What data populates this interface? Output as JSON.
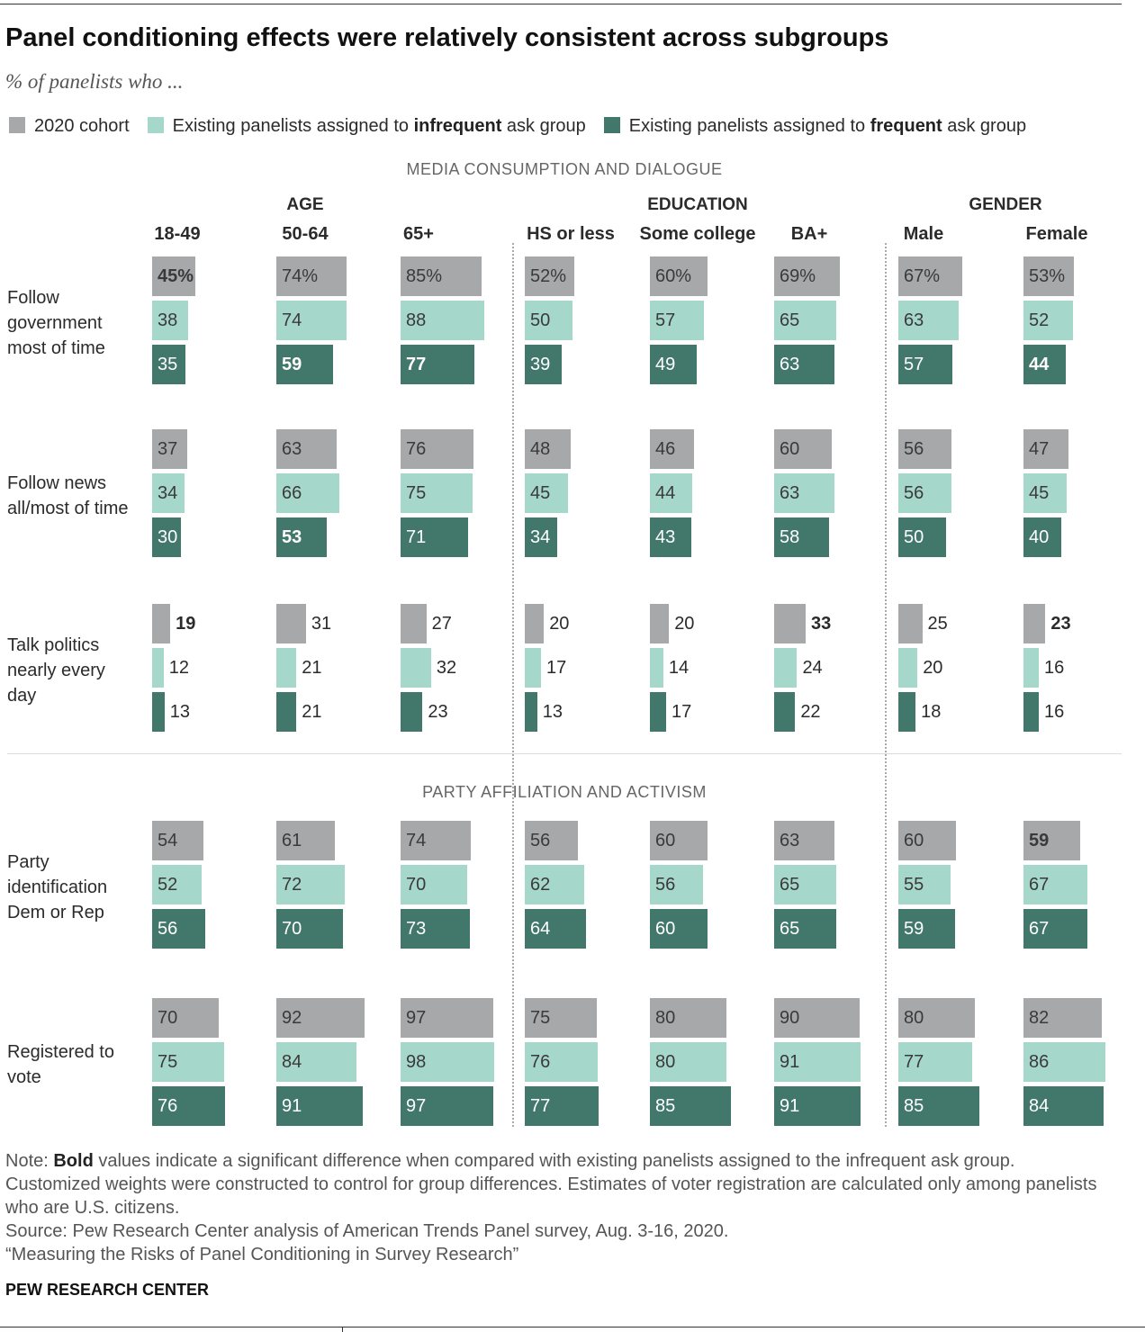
{
  "chart_data": {
    "type": "grouped-bar-grid",
    "title": "Panel conditioning effects were relatively consistent across subgroups",
    "subtitle": "% of panelists who ...",
    "series": [
      {
        "name_parts": [
          {
            "text": "2020 cohort"
          }
        ],
        "color": "#a7a8aa",
        "text_color": "#3a3a3a"
      },
      {
        "name_parts": [
          {
            "text": "Existing panelists assigned to "
          },
          {
            "text": "infrequent",
            "bold": true
          },
          {
            "text": " ask group"
          }
        ],
        "color": "#a6d7cb",
        "text_color": "#3a3a3a"
      },
      {
        "name_parts": [
          {
            "text": "Existing panelists assigned to "
          },
          {
            "text": "frequent",
            "bold": true
          },
          {
            "text": " ask group"
          }
        ],
        "color": "#42786b",
        "text_color": "#ffffff"
      }
    ],
    "groups": [
      {
        "name": "AGE",
        "subgroups": [
          "18-49",
          "50-64",
          "65+"
        ]
      },
      {
        "name": "EDUCATION",
        "subgroups": [
          "HS or less",
          "Some college",
          "BA+"
        ]
      },
      {
        "name": "GENDER",
        "subgroups": [
          "Male",
          "Female"
        ]
      }
    ],
    "sections": [
      {
        "title": "MEDIA CONSUMPTION AND DIALOGUE",
        "rows": [
          {
            "label": "Follow government most of time",
            "values": [
              [
                45,
                38,
                35
              ],
              [
                74,
                74,
                59
              ],
              [
                85,
                88,
                77
              ],
              [
                52,
                50,
                39
              ],
              [
                60,
                57,
                49
              ],
              [
                69,
                65,
                63
              ],
              [
                67,
                63,
                57
              ],
              [
                53,
                52,
                44
              ]
            ],
            "value_labels": [
              [
                "45%",
                null,
                null
              ],
              [
                "74%",
                null,
                null
              ],
              [
                "85%",
                null,
                null
              ],
              [
                "52%",
                null,
                null
              ],
              [
                "60%",
                null,
                null
              ],
              [
                "69%",
                null,
                null
              ],
              [
                "67%",
                null,
                null
              ],
              [
                "53%",
                null,
                null
              ]
            ],
            "bold": [
              [
                true,
                false,
                false
              ],
              [
                false,
                false,
                true
              ],
              [
                false,
                false,
                true
              ],
              [
                false,
                false,
                false
              ],
              [
                false,
                false,
                false
              ],
              [
                false,
                false,
                false
              ],
              [
                false,
                false,
                false
              ],
              [
                false,
                false,
                true
              ]
            ]
          },
          {
            "label": "Follow news all/most of time",
            "values": [
              [
                37,
                34,
                30
              ],
              [
                63,
                66,
                53
              ],
              [
                76,
                75,
                71
              ],
              [
                48,
                45,
                34
              ],
              [
                46,
                44,
                43
              ],
              [
                60,
                63,
                58
              ],
              [
                56,
                56,
                50
              ],
              [
                47,
                45,
                40
              ]
            ],
            "bold": [
              [
                false,
                false,
                false
              ],
              [
                false,
                false,
                true
              ],
              [
                false,
                false,
                false
              ],
              [
                false,
                false,
                false
              ],
              [
                false,
                false,
                false
              ],
              [
                false,
                false,
                false
              ],
              [
                false,
                false,
                false
              ],
              [
                false,
                false,
                false
              ]
            ]
          },
          {
            "label": "Talk politics nearly every day",
            "labels_outside": true,
            "values": [
              [
                19,
                12,
                13
              ],
              [
                31,
                21,
                21
              ],
              [
                27,
                32,
                23
              ],
              [
                20,
                17,
                13
              ],
              [
                20,
                14,
                17
              ],
              [
                33,
                24,
                22
              ],
              [
                25,
                20,
                18
              ],
              [
                23,
                16,
                16
              ]
            ],
            "bold": [
              [
                true,
                false,
                false
              ],
              [
                false,
                false,
                false
              ],
              [
                false,
                false,
                false
              ],
              [
                false,
                false,
                false
              ],
              [
                false,
                false,
                false
              ],
              [
                true,
                false,
                false
              ],
              [
                false,
                false,
                false
              ],
              [
                true,
                false,
                false
              ]
            ]
          }
        ]
      },
      {
        "title": "PARTY AFFILIATION AND ACTIVISM",
        "rows": [
          {
            "label": "Party identification Dem or Rep",
            "values": [
              [
                54,
                52,
                56
              ],
              [
                61,
                72,
                70
              ],
              [
                74,
                70,
                73
              ],
              [
                56,
                62,
                64
              ],
              [
                60,
                56,
                60
              ],
              [
                63,
                65,
                65
              ],
              [
                60,
                55,
                59
              ],
              [
                59,
                67,
                67
              ]
            ],
            "bold": [
              [
                false,
                false,
                false
              ],
              [
                false,
                false,
                false
              ],
              [
                false,
                false,
                false
              ],
              [
                false,
                false,
                false
              ],
              [
                false,
                false,
                false
              ],
              [
                false,
                false,
                false
              ],
              [
                false,
                false,
                false
              ],
              [
                true,
                false,
                false
              ]
            ]
          },
          {
            "label": "Registered to vote",
            "values": [
              [
                70,
                75,
                76
              ],
              [
                92,
                84,
                91
              ],
              [
                97,
                98,
                97
              ],
              [
                75,
                76,
                77
              ],
              [
                80,
                80,
                85
              ],
              [
                90,
                91,
                91
              ],
              [
                80,
                77,
                85
              ],
              [
                82,
                86,
                84
              ]
            ]
          }
        ]
      }
    ],
    "note_parts": [
      {
        "text": "Note: "
      },
      {
        "text": "Bold",
        "bold": true
      },
      {
        "text": " values indicate a significant difference when compared with existing panelists assigned to the infrequent ask group. Customized weights were constructed to control for group differences. Estimates of voter registration are calculated only among panelists who are U.S. citizens."
      }
    ],
    "source": "Source: Pew Research Center analysis of American Trends Panel survey, Aug. 3-16, 2020.",
    "report": "“Measuring the Risks of Panel Conditioning in Survey Research”",
    "credit": "PEW RESEARCH CENTER"
  }
}
